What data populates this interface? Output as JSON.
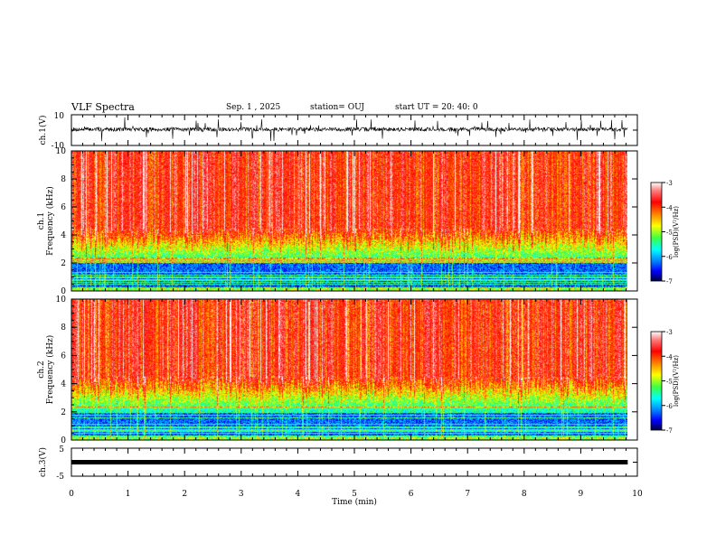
{
  "header": {
    "title": "VLF Spectra",
    "date": "Sep. 1 , 2025",
    "station": "station= OUJ",
    "start": "start UT =  20: 40: 0"
  },
  "chart_data": [
    {
      "type": "line",
      "name": "ch1-waveform",
      "ylabel": "ch.1(V)",
      "ylim": [
        -10,
        10
      ],
      "tick_labels": [
        "10",
        "-10"
      ],
      "xlim": [
        0,
        10
      ],
      "baseline": 0,
      "extent_min": 9.83,
      "description_values": {
        "typical_min": -3,
        "typical_max": 3
      }
    },
    {
      "type": "heatmap",
      "name": "ch1-spectrogram",
      "ylabel_line1": "ch.1",
      "ylabel_line2": "Frequency (kHz)",
      "ylim": [
        0,
        10
      ],
      "y_ticks": [
        "0",
        "2",
        "4",
        "6",
        "8",
        "10"
      ],
      "xlim": [
        0,
        10
      ],
      "data_extent_min": 9.83,
      "colorbar": {
        "label": "log(PSD)(V²/Hz)",
        "range": [
          -7,
          -3
        ],
        "tick_labels": [
          "-3",
          "-4",
          "-5",
          "-6",
          "-7"
        ]
      }
    },
    {
      "type": "heatmap",
      "name": "ch2-spectrogram",
      "ylabel_line1": "ch.2",
      "ylabel_line2": "Frequency (kHz)",
      "ylim": [
        0,
        10
      ],
      "y_ticks": [
        "0",
        "2",
        "4",
        "6",
        "8",
        "10"
      ],
      "xlim": [
        0,
        10
      ],
      "data_extent_min": 9.83,
      "colorbar": {
        "label": "log(PSD)(V²/Hz)",
        "range": [
          -7,
          -3
        ],
        "tick_labels": [
          "-3",
          "-4",
          "-5",
          "-6",
          "-7"
        ]
      }
    },
    {
      "type": "line",
      "name": "ch3-waveform",
      "ylabel": "ch.3(V)",
      "ylim": [
        -5,
        5
      ],
      "tick_labels": [
        "5",
        "-5"
      ],
      "xlim": [
        0,
        10
      ],
      "baseline": 0,
      "extent_min": 9.83,
      "xlabel": "Time (min)",
      "x_ticks": [
        "0",
        "1",
        "2",
        "3",
        "4",
        "5",
        "6",
        "7",
        "8",
        "9",
        "10"
      ]
    }
  ],
  "colors": {
    "ink": "#000000",
    "colormap": [
      "#000080",
      "#0000ff",
      "#0080ff",
      "#00ffff",
      "#00ff80",
      "#80ff00",
      "#ffff00",
      "#ff8000",
      "#ff0000",
      "#ffffff"
    ]
  }
}
